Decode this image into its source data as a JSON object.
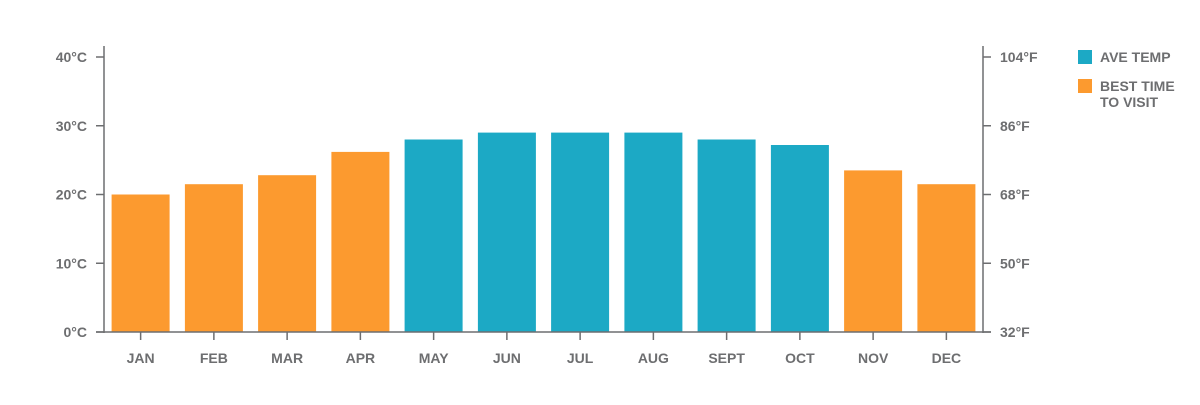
{
  "chart_data": {
    "type": "bar",
    "categories": [
      "JAN",
      "FEB",
      "MAR",
      "APR",
      "MAY",
      "JUN",
      "JUL",
      "AUG",
      "SEPT",
      "OCT",
      "NOV",
      "DEC"
    ],
    "values": [
      20,
      21.5,
      22.8,
      26.2,
      28,
      29,
      29,
      29,
      28,
      27.2,
      23.5,
      21.5
    ],
    "highlight": [
      true,
      true,
      true,
      true,
      false,
      false,
      false,
      false,
      false,
      false,
      true,
      true
    ],
    "ylim": [
      0,
      40
    ],
    "y_ticks_left": [
      "0°C",
      "10°C",
      "20°C",
      "30°C",
      "40°C"
    ],
    "y_ticks_right": [
      "32°F",
      "50°F",
      "68°F",
      "86°F",
      "104°F"
    ],
    "legend": [
      {
        "label_lines": [
          "AVE TEMP"
        ],
        "color": "#1ca9c5"
      },
      {
        "label_lines": [
          "BEST TIME",
          "TO VISIT"
        ],
        "color": "#fc9a2f"
      }
    ],
    "grid": false,
    "legend_position": "right"
  },
  "colors": {
    "base": "#1ca9c5",
    "highlight": "#fc9a2f",
    "axis": "#6d6e70",
    "text": "#6d6e70"
  }
}
